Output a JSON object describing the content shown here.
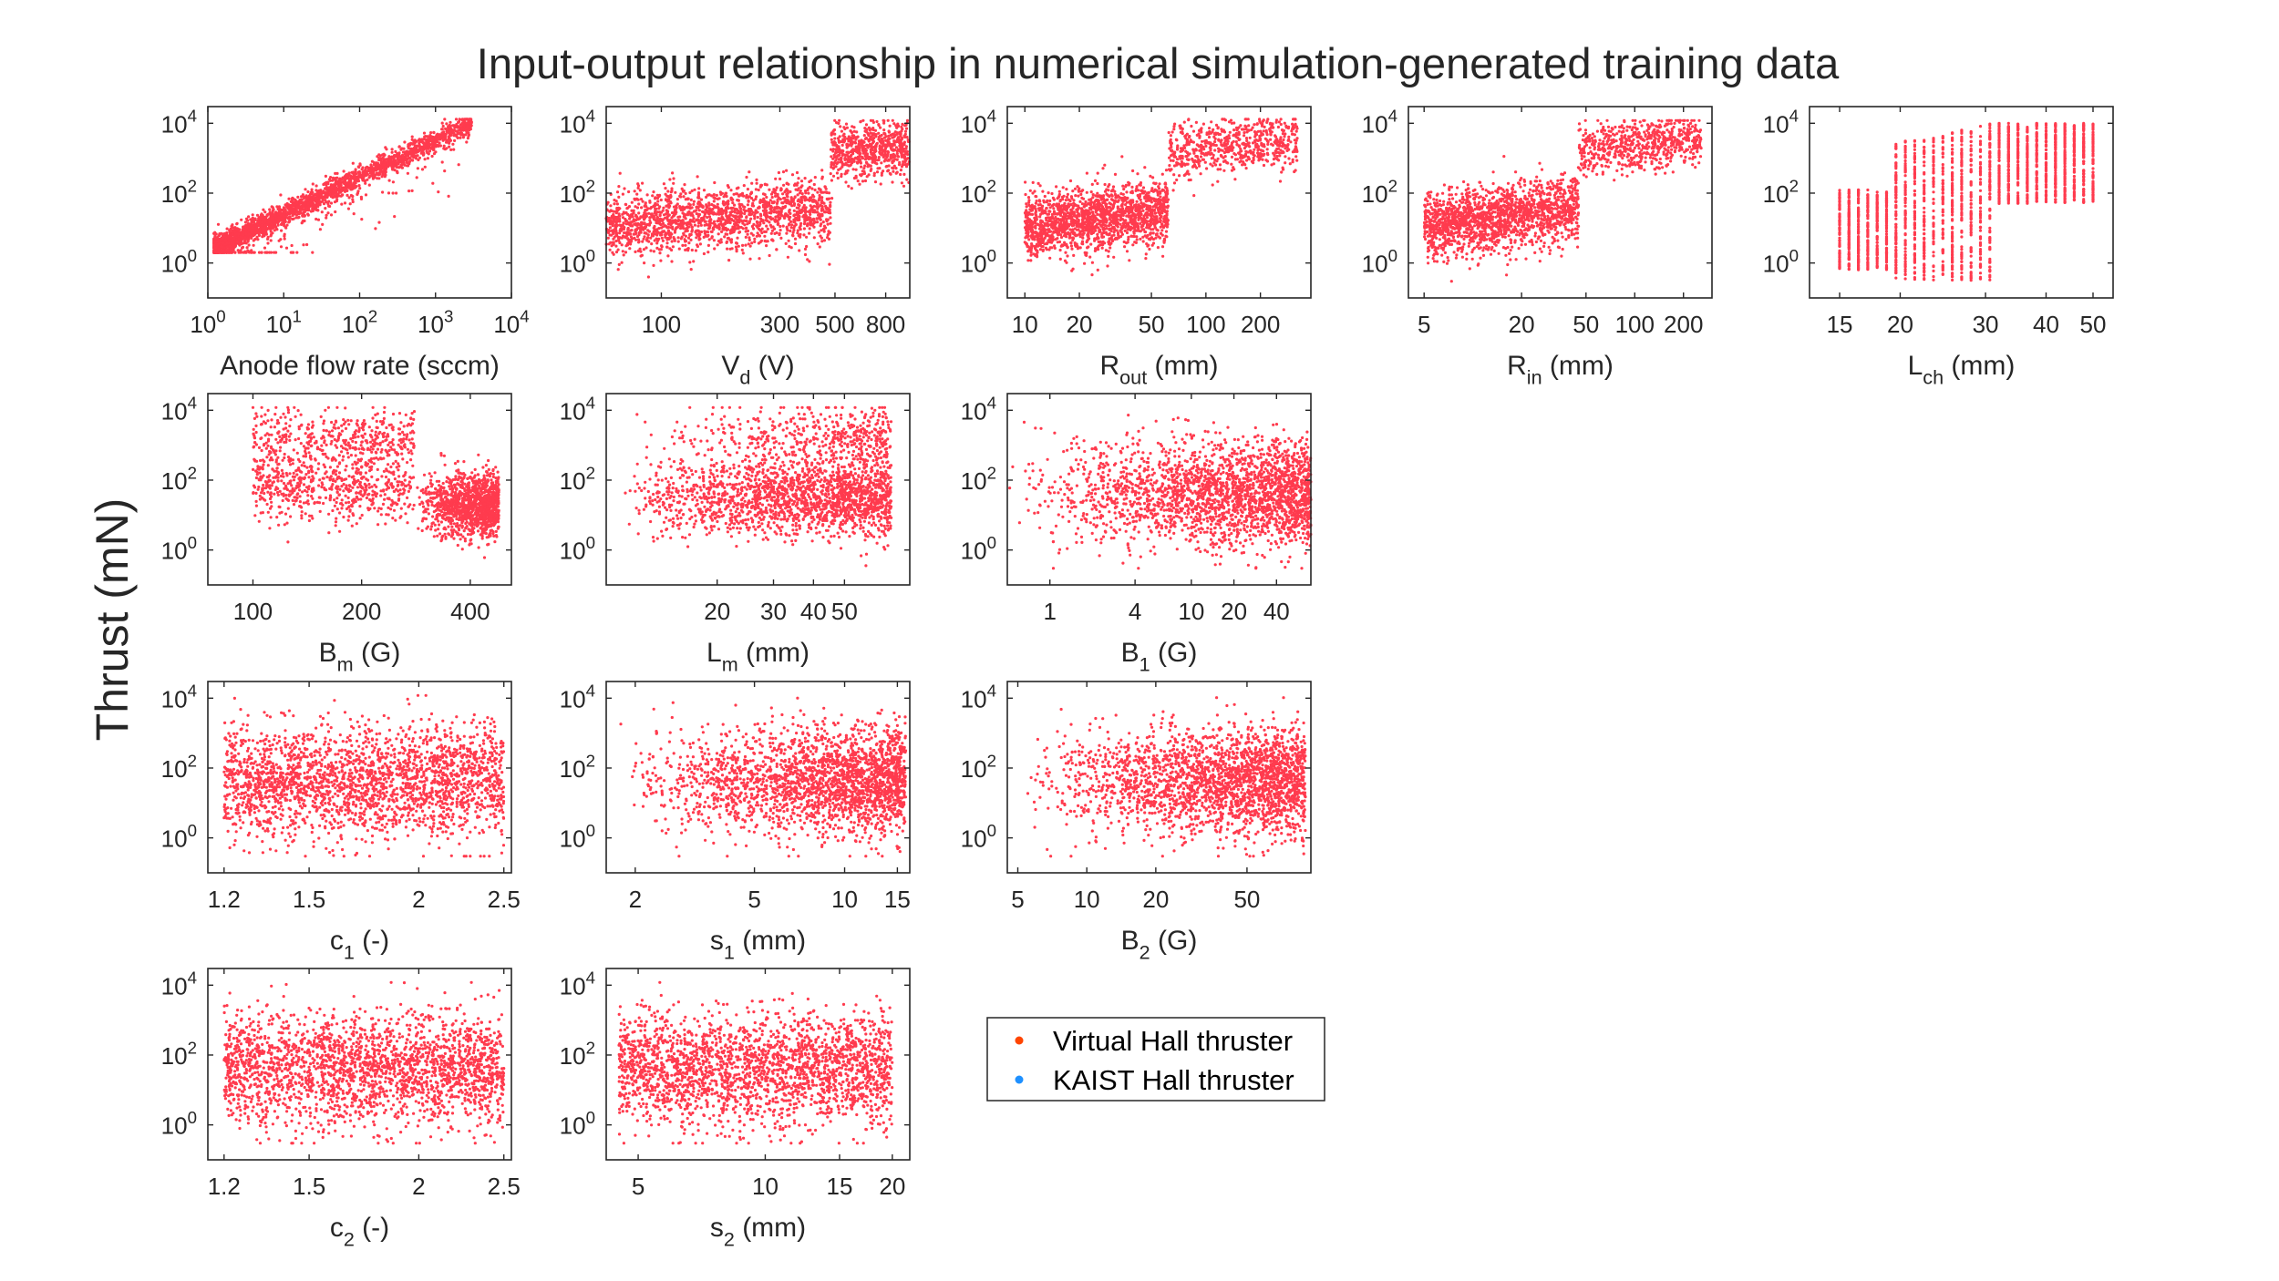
{
  "figure": {
    "title": "Input-output relationship in numerical simulation-generated training data",
    "ylabel": "Thrust (mN)"
  },
  "legend": {
    "items": [
      {
        "label": "Virtual Hall thruster",
        "color": "#FF4500"
      },
      {
        "label": "KAIST Hall thruster",
        "color": "#1E90FF"
      }
    ]
  },
  "colors": {
    "points": "#FF3B4E",
    "axes": "#262626"
  },
  "chart_data": [
    {
      "id": "anode",
      "type": "scatter",
      "xlabel": "Anode flow rate (sccm)",
      "xscale": "log",
      "xlim": [
        1,
        10000
      ],
      "yscale": "log",
      "ylim": [
        0.1,
        30000
      ],
      "xticks": [
        "10^0",
        "10^1",
        "10^2",
        "10^3",
        "10^4"
      ],
      "yticks": [
        "10^0",
        "10^2",
        "10^4"
      ],
      "series": [
        {
          "pattern": "power_law",
          "x_range": [
            1.2,
            3000
          ],
          "y_range": [
            2,
            13000
          ],
          "note": "tight log-linear band"
        }
      ]
    },
    {
      "id": "vd",
      "type": "scatter",
      "xlabel": "V_d (V)",
      "xscale": "log",
      "xlim": [
        60,
        1000
      ],
      "yscale": "log",
      "ylim": [
        0.1,
        30000
      ],
      "xticks": [
        "100",
        "300",
        "500",
        "800"
      ],
      "yticks": [
        "10^0",
        "10^2",
        "10^4"
      ],
      "series": [
        {
          "pattern": "step",
          "x_range": [
            60,
            1000
          ],
          "y_range": [
            0.3,
            12000
          ],
          "step_at": 480
        }
      ]
    },
    {
      "id": "rout",
      "type": "scatter",
      "xlabel": "R_out (mm)",
      "xscale": "log",
      "xlim": [
        8,
        380
      ],
      "yscale": "log",
      "ylim": [
        0.1,
        30000
      ],
      "xticks": [
        "10",
        "20",
        "50",
        "100",
        "200"
      ],
      "yticks": [
        "10^0",
        "10^2",
        "10^4"
      ],
      "series": [
        {
          "pattern": "step",
          "x_range": [
            10,
            320
          ],
          "y_range": [
            0.3,
            13000
          ],
          "step_at": 62
        }
      ]
    },
    {
      "id": "rin",
      "type": "scatter",
      "xlabel": "R_in (mm)",
      "xscale": "log",
      "xlim": [
        4,
        300
      ],
      "yscale": "log",
      "ylim": [
        0.1,
        30000
      ],
      "xticks": [
        "5",
        "20",
        "50",
        "100",
        "200"
      ],
      "yticks": [
        "10^0",
        "10^2",
        "10^4"
      ],
      "series": [
        {
          "pattern": "step",
          "x_range": [
            5,
            260
          ],
          "y_range": [
            0.3,
            12000
          ],
          "step_at": 45
        }
      ]
    },
    {
      "id": "lch",
      "type": "scatter",
      "xlabel": "L_ch (mm)",
      "xscale": "log",
      "xlim": [
        13,
        55
      ],
      "yscale": "log",
      "ylim": [
        0.1,
        30000
      ],
      "xticks": [
        "15",
        "20",
        "30",
        "40",
        "50"
      ],
      "yticks": [
        "10^0",
        "10^2",
        "10^4"
      ],
      "series": [
        {
          "pattern": "discrete_columns",
          "x_range": [
            15,
            50
          ],
          "y_range": [
            0.2,
            12000
          ]
        }
      ]
    },
    {
      "id": "bm",
      "type": "scatter",
      "xlabel": "B_m (G)",
      "xscale": "log",
      "xlim": [
        75,
        520
      ],
      "yscale": "log",
      "ylim": [
        0.1,
        30000
      ],
      "xticks": [
        "100",
        "200",
        "400"
      ],
      "yticks": [
        "10^0",
        "10^2",
        "10^4"
      ],
      "series": [
        {
          "pattern": "step_down",
          "x_range": [
            100,
            480
          ],
          "y_range": [
            0.3,
            12000
          ],
          "step_at": 280
        }
      ]
    },
    {
      "id": "lm",
      "type": "scatter",
      "xlabel": "L_m (mm)",
      "xscale": "log",
      "xlim": [
        9,
        80
      ],
      "yscale": "log",
      "ylim": [
        0.1,
        30000
      ],
      "xticks": [
        "20",
        "30",
        "40",
        "50"
      ],
      "yticks": [
        "10^0",
        "10^2",
        "10^4"
      ],
      "series": [
        {
          "pattern": "rising_cloud",
          "x_range": [
            10,
            70
          ],
          "y_range": [
            0.3,
            12000
          ]
        }
      ]
    },
    {
      "id": "b1",
      "type": "scatter",
      "xlabel": "B_1 (G)",
      "xscale": "log",
      "xlim": [
        0.5,
        70
      ],
      "yscale": "log",
      "ylim": [
        0.1,
        30000
      ],
      "xticks": [
        "1",
        "4",
        "10",
        "20",
        "40"
      ],
      "yticks": [
        "10^0",
        "10^2",
        "10^4"
      ],
      "series": [
        {
          "pattern": "dense_right",
          "x_range": [
            0.5,
            70
          ],
          "y_range": [
            0.3,
            12000
          ]
        }
      ]
    },
    {
      "id": "c1",
      "type": "scatter",
      "xlabel": "c_1 (-)",
      "xscale": "log",
      "xlim": [
        1.15,
        2.55
      ],
      "yscale": "log",
      "ylim": [
        0.1,
        30000
      ],
      "xticks": [
        "1.2",
        "1.5",
        "2",
        "2.5"
      ],
      "yticks": [
        "10^0",
        "10^2",
        "10^4"
      ],
      "series": [
        {
          "pattern": "uniform_cloud",
          "x_range": [
            1.2,
            2.5
          ],
          "y_range": [
            0.3,
            12000
          ]
        }
      ]
    },
    {
      "id": "s1",
      "type": "scatter",
      "xlabel": "s_1 (mm)",
      "xscale": "log",
      "xlim": [
        1.6,
        16.5
      ],
      "yscale": "log",
      "ylim": [
        0.1,
        30000
      ],
      "xticks": [
        "2",
        "5",
        "10",
        "15"
      ],
      "yticks": [
        "10^0",
        "10^2",
        "10^4"
      ],
      "series": [
        {
          "pattern": "dense_right",
          "x_range": [
            1.7,
            16
          ],
          "y_range": [
            0.3,
            12000
          ]
        }
      ]
    },
    {
      "id": "b2",
      "type": "scatter",
      "xlabel": "B_2 (G)",
      "xscale": "log",
      "xlim": [
        4.5,
        95
      ],
      "yscale": "log",
      "ylim": [
        0.1,
        30000
      ],
      "xticks": [
        "5",
        "10",
        "20",
        "50"
      ],
      "yticks": [
        "10^0",
        "10^2",
        "10^4"
      ],
      "series": [
        {
          "pattern": "dense_right",
          "x_range": [
            5,
            90
          ],
          "y_range": [
            0.3,
            12000
          ]
        }
      ]
    },
    {
      "id": "c2",
      "type": "scatter",
      "xlabel": "c_2 (-)",
      "xscale": "log",
      "xlim": [
        1.15,
        2.55
      ],
      "yscale": "log",
      "ylim": [
        0.1,
        30000
      ],
      "xticks": [
        "1.2",
        "1.5",
        "2",
        "2.5"
      ],
      "yticks": [
        "10^0",
        "10^2",
        "10^4"
      ],
      "series": [
        {
          "pattern": "uniform_cloud",
          "x_range": [
            1.2,
            2.5
          ],
          "y_range": [
            0.3,
            12000
          ]
        }
      ]
    },
    {
      "id": "s2",
      "type": "scatter",
      "xlabel": "s_2 (mm)",
      "xscale": "log",
      "xlim": [
        4.2,
        22
      ],
      "yscale": "log",
      "ylim": [
        0.1,
        30000
      ],
      "xticks": [
        "5",
        "10",
        "15",
        "20"
      ],
      "yticks": [
        "10^0",
        "10^2",
        "10^4"
      ],
      "series": [
        {
          "pattern": "uniform_cloud",
          "x_range": [
            4.5,
            20
          ],
          "y_range": [
            0.3,
            12000
          ]
        }
      ]
    }
  ]
}
